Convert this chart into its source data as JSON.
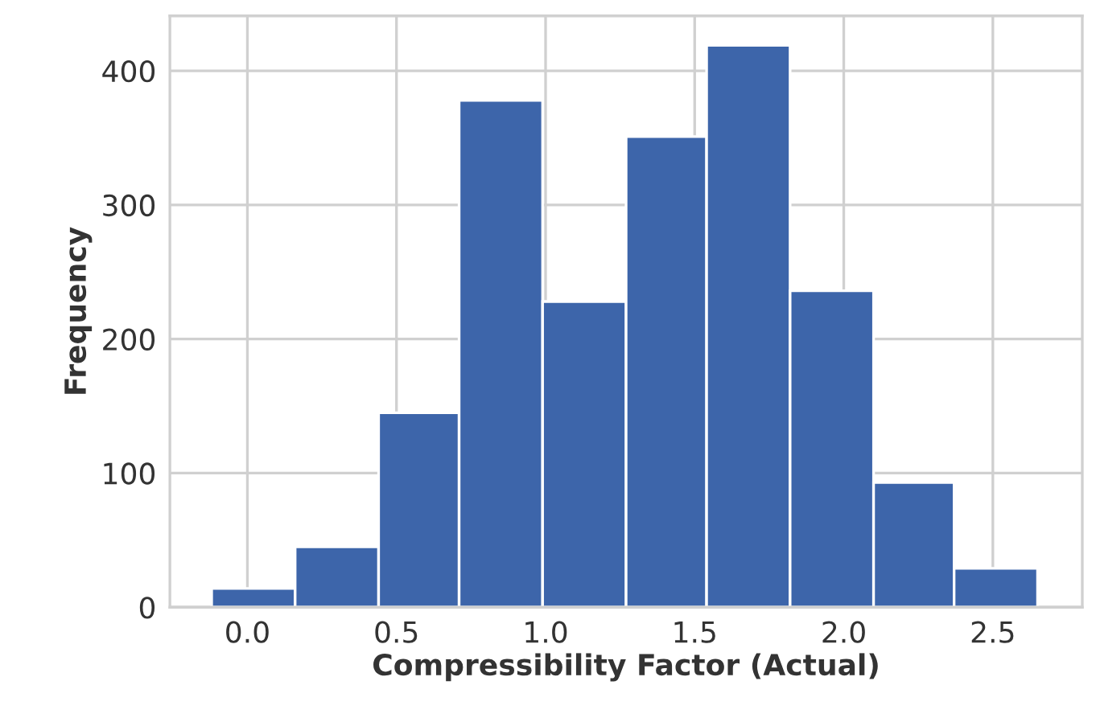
{
  "chart_data": {
    "type": "histogram",
    "xlabel": "Compressibility Factor (Actual)",
    "ylabel": "Frequency",
    "bins": [
      -0.12,
      0.16,
      0.44,
      0.71,
      0.99,
      1.27,
      1.54,
      1.82,
      2.1,
      2.37,
      2.65
    ],
    "values": [
      14,
      45,
      145,
      378,
      228,
      351,
      419,
      236,
      93,
      29
    ],
    "color": "#3d65aa",
    "xlim": [
      -0.26,
      2.8
    ],
    "xticks": [
      {
        "value": 0,
        "label": "0.0"
      },
      0.5,
      {
        "value": 1,
        "label": "1.0"
      },
      1.5,
      {
        "value": 2,
        "label": "2.0"
      },
      2.5
    ],
    "ylim": [
      0,
      441
    ],
    "yticks": [
      0,
      100,
      200,
      300,
      400
    ],
    "grid": true
  }
}
